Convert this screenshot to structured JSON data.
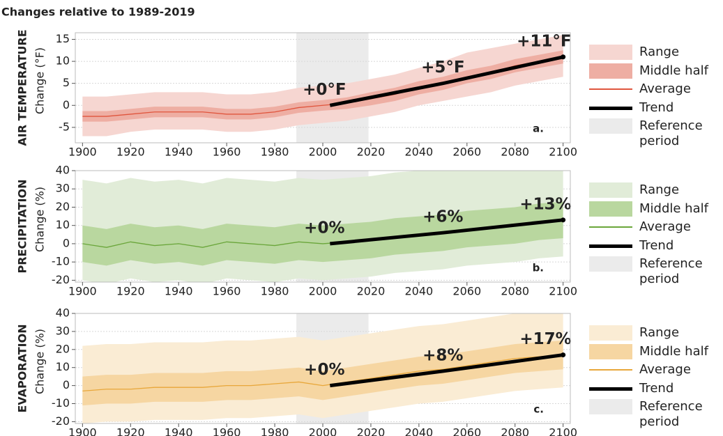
{
  "title": "Changes relative to 1989-2019",
  "chart_data": [
    {
      "type": "line",
      "row_label": "AIR TEMPERATURE",
      "ylabel": "Change (°F)",
      "panel_label": "a.",
      "x": [
        1900,
        1910,
        1920,
        1930,
        1940,
        1950,
        1960,
        1970,
        1980,
        1990,
        2000,
        2010,
        2020,
        2030,
        2040,
        2050,
        2060,
        2070,
        2080,
        2090,
        2100
      ],
      "xlim": [
        1897,
        2103
      ],
      "xticks": [
        1900,
        1920,
        1940,
        1960,
        1980,
        2000,
        2020,
        2040,
        2060,
        2080,
        2100
      ],
      "ylim": [
        -8.5,
        16.5
      ],
      "yticks": [
        -5,
        0,
        5,
        10,
        15
      ],
      "grid": true,
      "series": [
        {
          "name": "Range",
          "color": "#f6d6d1",
          "lower": [
            -7,
            -7,
            -6,
            -5.5,
            -5.5,
            -5.5,
            -6,
            -6,
            -5.5,
            -4.5,
            -4,
            -3.5,
            -2.5,
            -1.5,
            0,
            1,
            2,
            3,
            4.5,
            5.5,
            6.5
          ],
          "upper": [
            2,
            2,
            2.5,
            3,
            3,
            3,
            2.5,
            2.5,
            3,
            4,
            4.5,
            5,
            6,
            7,
            8.5,
            10,
            12,
            13,
            14,
            15,
            16
          ]
        },
        {
          "name": "Middle half",
          "color": "#eeaea3",
          "lower": [
            -3.7,
            -3.7,
            -3.2,
            -2.7,
            -2.7,
            -2.7,
            -3.2,
            -3.2,
            -2.7,
            -1.7,
            -1.2,
            -0.8,
            0,
            1,
            2.5,
            3.5,
            5,
            6,
            7.5,
            8.5,
            9.5
          ],
          "upper": [
            -1.3,
            -1.3,
            -0.8,
            -0.3,
            -0.3,
            -0.3,
            -0.8,
            -0.8,
            -0.3,
            0.7,
            1.2,
            1.8,
            3,
            4,
            5.5,
            6.5,
            8,
            9,
            10.5,
            11.5,
            12.5
          ]
        },
        {
          "name": "Average",
          "color": "#e0553d",
          "values": [
            -2.5,
            -2.5,
            -2,
            -1.5,
            -1.5,
            -1.5,
            -2,
            -2,
            -1.5,
            -0.5,
            0,
            0.5,
            1.5,
            2.5,
            4,
            5,
            6.5,
            7.5,
            9,
            10,
            11
          ]
        },
        {
          "name": "Trend",
          "color": "#000000",
          "x": [
            2003,
            2050,
            2100
          ],
          "values": [
            0,
            5,
            11
          ],
          "value_labels": [
            "+0°F",
            "+5°F",
            "+11°F"
          ]
        },
        {
          "name": "Reference period",
          "color": "#ebebeb",
          "xrange": [
            1989,
            2019
          ]
        }
      ]
    },
    {
      "type": "line",
      "row_label": "PRECIPITATION",
      "ylabel": "Change (%)",
      "panel_label": "b.",
      "x": [
        1900,
        1910,
        1920,
        1930,
        1940,
        1950,
        1960,
        1970,
        1980,
        1990,
        2000,
        2010,
        2020,
        2030,
        2040,
        2050,
        2060,
        2070,
        2080,
        2090,
        2100
      ],
      "xlim": [
        1897,
        2103
      ],
      "xticks": [
        1900,
        1920,
        1940,
        1960,
        1980,
        2000,
        2020,
        2040,
        2060,
        2080,
        2100
      ],
      "ylim": [
        -21,
        40
      ],
      "yticks": [
        -20,
        -10,
        0,
        10,
        20,
        30,
        40
      ],
      "grid": true,
      "series": [
        {
          "name": "Range",
          "color": "#e1ecd8",
          "lower": [
            -20,
            -22,
            -19,
            -21,
            -20,
            -22,
            -19,
            -20,
            -21,
            -19,
            -20,
            -19,
            -18,
            -16,
            -15,
            -14,
            -12,
            -11,
            -10,
            -8,
            -7
          ],
          "upper": [
            35,
            33,
            36,
            34,
            35,
            33,
            36,
            35,
            34,
            36,
            35,
            36,
            37,
            39,
            40,
            41,
            43,
            44,
            45,
            47,
            48
          ]
        },
        {
          "name": "Middle half",
          "color": "#b9d79f",
          "lower": [
            -10,
            -12,
            -9,
            -11,
            -10,
            -12,
            -9,
            -10,
            -11,
            -9,
            -10,
            -9,
            -8,
            -6,
            -5,
            -4,
            -2,
            -1,
            0,
            2,
            3
          ],
          "upper": [
            10,
            8,
            11,
            9,
            10,
            8,
            11,
            10,
            9,
            11,
            10,
            11,
            12,
            14,
            15,
            16,
            18,
            19,
            20,
            22,
            23
          ]
        },
        {
          "name": "Average",
          "color": "#6aa63a",
          "values": [
            0,
            -2,
            1,
            -1,
            0,
            -2,
            1,
            0,
            -1,
            1,
            0,
            1,
            2,
            4,
            5,
            6,
            8,
            9,
            10,
            12,
            13
          ]
        },
        {
          "name": "Trend",
          "color": "#000000",
          "x": [
            2003,
            2050,
            2100
          ],
          "values": [
            0,
            6,
            13
          ],
          "value_labels": [
            "+0%",
            "+6%",
            "+13%"
          ]
        },
        {
          "name": "Reference period",
          "color": "#ebebeb",
          "xrange": [
            1989,
            2019
          ]
        }
      ]
    },
    {
      "type": "line",
      "row_label": "EVAPORATION",
      "ylabel": "Change (%)",
      "panel_label": "c.",
      "x": [
        1900,
        1910,
        1920,
        1930,
        1940,
        1950,
        1960,
        1970,
        1980,
        1990,
        2000,
        2010,
        2020,
        2030,
        2040,
        2050,
        2060,
        2070,
        2080,
        2090,
        2100
      ],
      "xlim": [
        1897,
        2103
      ],
      "xticks": [
        1900,
        1920,
        1940,
        1960,
        1980,
        2000,
        2020,
        2040,
        2060,
        2080,
        2100
      ],
      "ylim": [
        -21,
        40
      ],
      "yticks": [
        -20,
        -10,
        0,
        10,
        20,
        30,
        40
      ],
      "grid": true,
      "series": [
        {
          "name": "Range",
          "color": "#faecd4",
          "lower": [
            -21,
            -20,
            -20,
            -19,
            -19,
            -19,
            -18,
            -18,
            -17,
            -16,
            -18,
            -16,
            -14,
            -12,
            -10,
            -9,
            -7,
            -5,
            -3,
            -2,
            -1
          ],
          "upper": [
            22,
            23,
            23,
            24,
            24,
            24,
            25,
            25,
            26,
            27,
            25,
            27,
            29,
            31,
            33,
            34,
            36,
            38,
            40,
            41,
            42
          ]
        },
        {
          "name": "Middle half",
          "color": "#f6d6a2",
          "lower": [
            -11,
            -10,
            -10,
            -9,
            -9,
            -9,
            -8,
            -8,
            -7,
            -6,
            -8,
            -6,
            -4,
            -2,
            0,
            1,
            3,
            5,
            7,
            8,
            9
          ],
          "upper": [
            5,
            6,
            6,
            7,
            7,
            7,
            8,
            8,
            9,
            10,
            8,
            10,
            12,
            14,
            16,
            17,
            19,
            21,
            23,
            24,
            25
          ]
        },
        {
          "name": "Average",
          "color": "#e8a73a",
          "values": [
            -3,
            -2,
            -2,
            -1,
            -1,
            -1,
            0,
            0,
            1,
            2,
            0,
            2,
            4,
            6,
            8,
            9,
            11,
            13,
            15,
            16,
            17
          ]
        },
        {
          "name": "Trend",
          "color": "#000000",
          "x": [
            2003,
            2050,
            2100
          ],
          "values": [
            0,
            8,
            17
          ],
          "value_labels": [
            "+0%",
            "+8%",
            "+17%"
          ]
        },
        {
          "name": "Reference period",
          "color": "#ebebeb",
          "xrange": [
            1989,
            2019
          ]
        }
      ]
    }
  ]
}
